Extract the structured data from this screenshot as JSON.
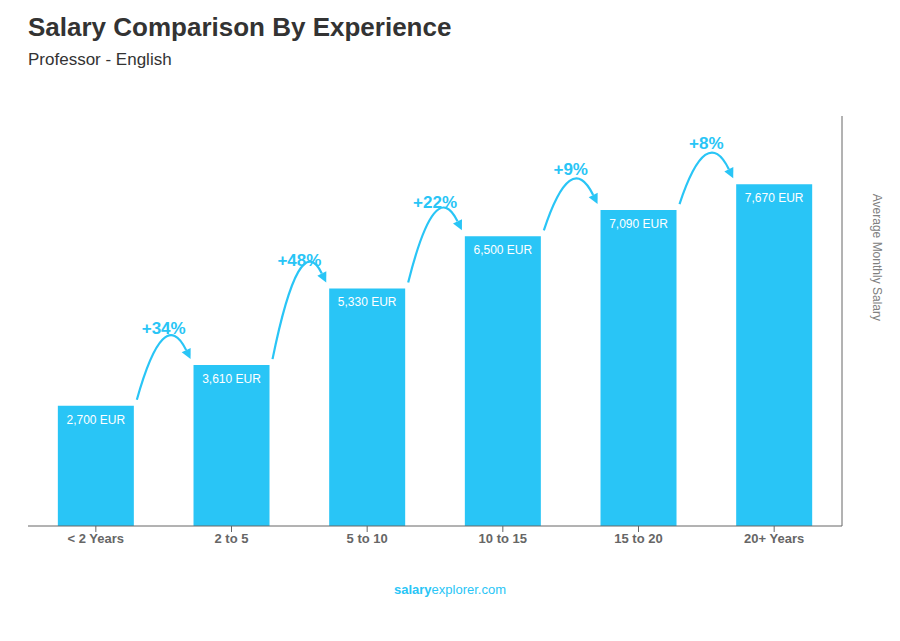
{
  "chart_data": {
    "type": "bar",
    "title": "Salary Comparison By Experience",
    "subtitle": "Professor - English",
    "ylabel": "Average Monthly Salary",
    "categories": [
      "< 2 Years",
      "2 to 5",
      "5 to 10",
      "10 to 15",
      "15 to 20",
      "20+ Years"
    ],
    "values": [
      2700,
      3610,
      5330,
      6500,
      7090,
      7670
    ],
    "value_labels": [
      "2,700 EUR",
      "3,610 EUR",
      "5,330 EUR",
      "6,500 EUR",
      "7,090 EUR",
      "7,670 EUR"
    ],
    "data_labels": true,
    "color": "#29c5f6",
    "ylim": [
      0,
      9200
    ],
    "tick_labels": "x",
    "grid": false,
    "annotations": [
      "+34%",
      "+48%",
      "+22%",
      "+9%",
      "+8%"
    ],
    "footer": [
      "salary",
      "explorer.com"
    ]
  }
}
